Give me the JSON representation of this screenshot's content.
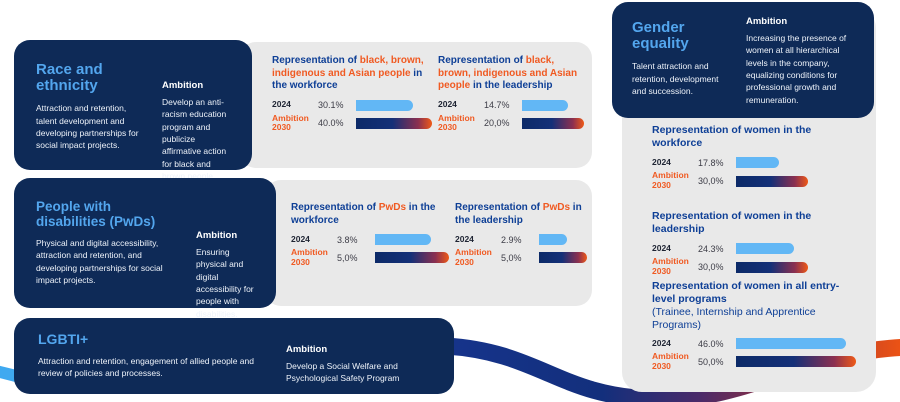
{
  "colors": {
    "card_navy": "#0e2a57",
    "heading_blue": "#53a6ee",
    "title_navy": "#0e3f96",
    "accent_orange": "#f05a22",
    "bar_blue": "#62b7f5",
    "panel_gray": "#e9e9e9"
  },
  "cards": {
    "race": {
      "title": "Race and ethnicity",
      "description": "Attraction and retention, talent development and developing partnerships for social impact projects.",
      "ambition_label": "Ambition",
      "ambition_text": "Develop an anti-racism education program and publicize affirmative action for black and brown people."
    },
    "pwd": {
      "title": "People with disabilities (PwDs)",
      "description": "Physical and digital accessibility, attraction and retention, and developing partnerships for social impact projects.",
      "ambition_label": "Ambition",
      "ambition_text": "Ensuring physical and digital accessibility for people with disabilities."
    },
    "lgbti": {
      "title": "LGBTI+",
      "description": "Attraction and retention, engagement of allied people and review of policies and processes.",
      "ambition_label": "Ambition",
      "ambition_text": "Develop a Social Welfare and Psychological Safety Program"
    },
    "gender": {
      "title": "Gender equality",
      "description": "Talent attraction and retention, development and succession.",
      "ambition_label": "Ambition",
      "ambition_text": "Increasing the presence of women at all hierarchical levels in the company, equalizing conditions for professional growth and remuneration."
    }
  },
  "chart_data": [
    {
      "id": "race-workforce",
      "type": "bar",
      "title_segments": [
        {
          "text": "Representation of ",
          "color": "#0e3f96"
        },
        {
          "text": "black, brown, indigenous and Asian people",
          "color": "#f05a22"
        },
        {
          "text": " in the workforce",
          "color": "#0e3f96"
        }
      ],
      "subtitle": "",
      "categories": [
        "2024",
        "Ambition 2030"
      ],
      "values": [
        30.1,
        40.0
      ],
      "value_labels": [
        "30.1%",
        "40.0%"
      ],
      "axis_max": 40.0
    },
    {
      "id": "race-leadership",
      "type": "bar",
      "title_segments": [
        {
          "text": "Representation of ",
          "color": "#0e3f96"
        },
        {
          "text": "black, brown, indigenous and Asian people",
          "color": "#f05a22"
        },
        {
          "text": " in the leadership",
          "color": "#0e3f96"
        }
      ],
      "subtitle": "",
      "categories": [
        "2024",
        "Ambition 2030"
      ],
      "values": [
        14.7,
        20.0
      ],
      "value_labels": [
        "14.7%",
        "20,0%"
      ],
      "axis_max": 20.0
    },
    {
      "id": "pwd-workforce",
      "type": "bar",
      "title_segments": [
        {
          "text": "Representation of ",
          "color": "#0e3f96"
        },
        {
          "text": "PwDs",
          "color": "#f05a22"
        },
        {
          "text": " in the workforce",
          "color": "#0e3f96"
        }
      ],
      "subtitle": "",
      "categories": [
        "2024",
        "Ambition 2030"
      ],
      "values": [
        3.8,
        5.0
      ],
      "value_labels": [
        "3.8%",
        "5,0%"
      ],
      "axis_max": 5.0
    },
    {
      "id": "pwd-leadership",
      "type": "bar",
      "title_segments": [
        {
          "text": "Representation of ",
          "color": "#0e3f96"
        },
        {
          "text": "PwDs",
          "color": "#f05a22"
        },
        {
          "text": " in the leadership",
          "color": "#0e3f96"
        }
      ],
      "subtitle": "",
      "categories": [
        "2024",
        "Ambition 2030"
      ],
      "values": [
        2.9,
        5.0
      ],
      "value_labels": [
        "2.9%",
        "5,0%"
      ],
      "axis_max": 5.0
    },
    {
      "id": "women-workforce",
      "type": "bar",
      "title_segments": [
        {
          "text": "Representation of women in the workforce",
          "color": "#0e3f96"
        }
      ],
      "subtitle": "",
      "categories": [
        "2024",
        "Ambition 2030"
      ],
      "values": [
        17.8,
        30.0
      ],
      "value_labels": [
        "17.8%",
        "30,0%"
      ],
      "axis_max": 50.0
    },
    {
      "id": "women-leadership",
      "type": "bar",
      "title_segments": [
        {
          "text": "Representation of women in the leadership",
          "color": "#0e3f96"
        }
      ],
      "subtitle": "",
      "categories": [
        "2024",
        "Ambition 2030"
      ],
      "values": [
        24.3,
        30.0
      ],
      "value_labels": [
        "24.3%",
        "30,0%"
      ],
      "axis_max": 50.0
    },
    {
      "id": "women-entry-level",
      "type": "bar",
      "title_segments": [
        {
          "text": "Representation of women in all entry-level programs",
          "color": "#0e3f96"
        }
      ],
      "subtitle": "(Trainee, Internship and Apprentice Programs)",
      "categories": [
        "2024",
        "Ambition 2030"
      ],
      "values": [
        46.0,
        50.0
      ],
      "value_labels": [
        "46.0%",
        "50,0%"
      ],
      "axis_max": 50.0
    }
  ]
}
